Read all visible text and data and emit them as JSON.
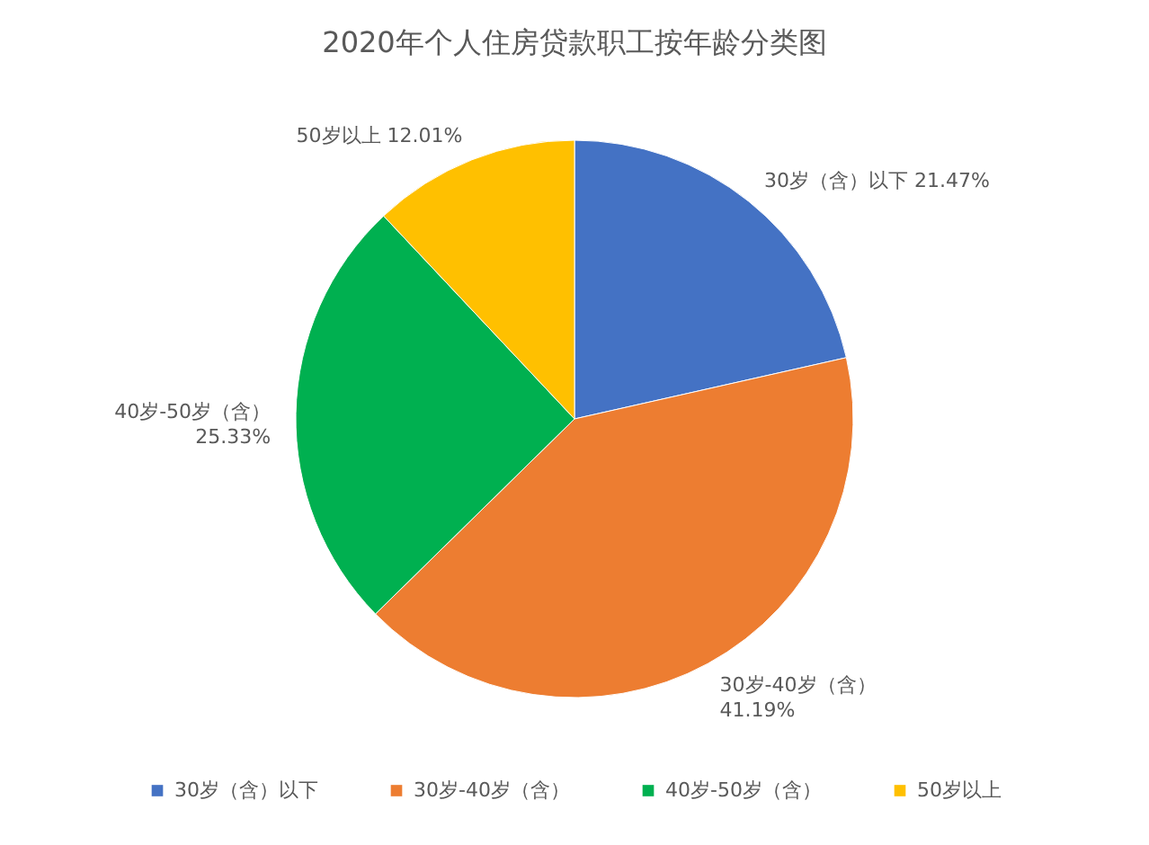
{
  "chart_data": {
    "type": "pie",
    "title": "2020年个人住房贷款职工按年龄分类图",
    "categories": [
      "30岁（含）以下",
      "30岁-40岁（含）",
      "40岁-50岁（含）",
      "50岁以上"
    ],
    "values": [
      21.47,
      41.19,
      25.33,
      12.01
    ],
    "colors": [
      "#4472c4",
      "#ed7d31",
      "#00b050",
      "#ffc000"
    ],
    "value_labels": [
      "21.47%",
      "41.19%",
      "25.33%",
      "12.01%"
    ],
    "legend": "bottom"
  }
}
